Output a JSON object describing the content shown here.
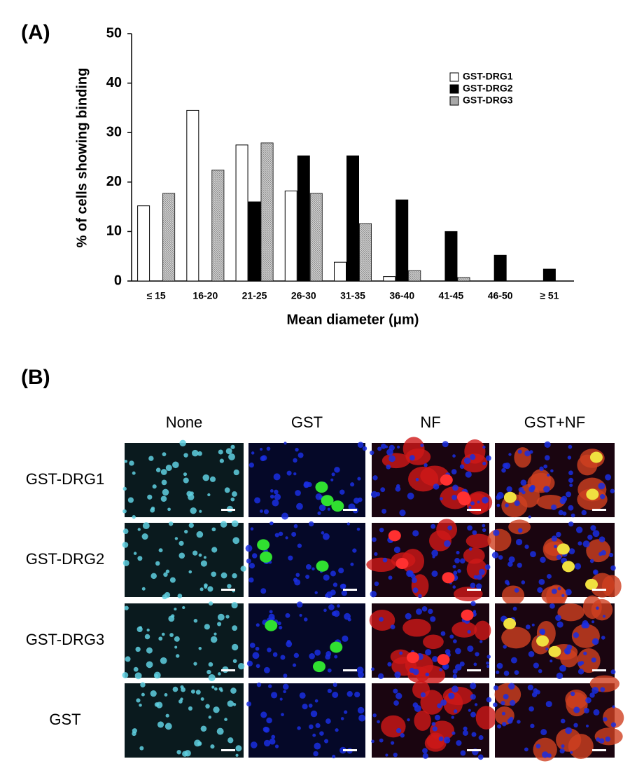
{
  "chart_data": {
    "type": "bar",
    "panel_label": "(A)",
    "y_label": "% of cells showing binding",
    "x_label": "Mean diameter (μm)",
    "categories": [
      "≤ 15",
      "16-20",
      "21-25",
      "26-30",
      "31-35",
      "36-40",
      "41-45",
      "46-50",
      "≥ 51"
    ],
    "series": [
      {
        "name": "GST-DRG1",
        "color": "#ffffff",
        "values": [
          15.2,
          34.5,
          27.5,
          18.2,
          3.8,
          0.9,
          0,
          0,
          0
        ]
      },
      {
        "name": "GST-DRG2",
        "color": "#000000",
        "values": [
          0,
          0,
          16,
          25.3,
          25.3,
          16.4,
          10,
          5.2,
          2.4
        ]
      },
      {
        "name": "GST-DRG3",
        "color": "#a8a8a8",
        "values": [
          17.7,
          22.4,
          27.9,
          17.7,
          11.6,
          2.1,
          0.7,
          0,
          0
        ]
      }
    ],
    "ylim": [
      0,
      50
    ],
    "yticks": [
      0,
      10,
      20,
      30,
      40,
      50
    ],
    "grid": false,
    "legend": "upper right"
  },
  "panel_b": {
    "panel_label": "(B)",
    "columns": [
      "None",
      "GST",
      "NF",
      "GST+NF"
    ],
    "rows": [
      "GST-DRG1",
      "GST-DRG2",
      "GST-DRG3",
      "GST"
    ]
  }
}
